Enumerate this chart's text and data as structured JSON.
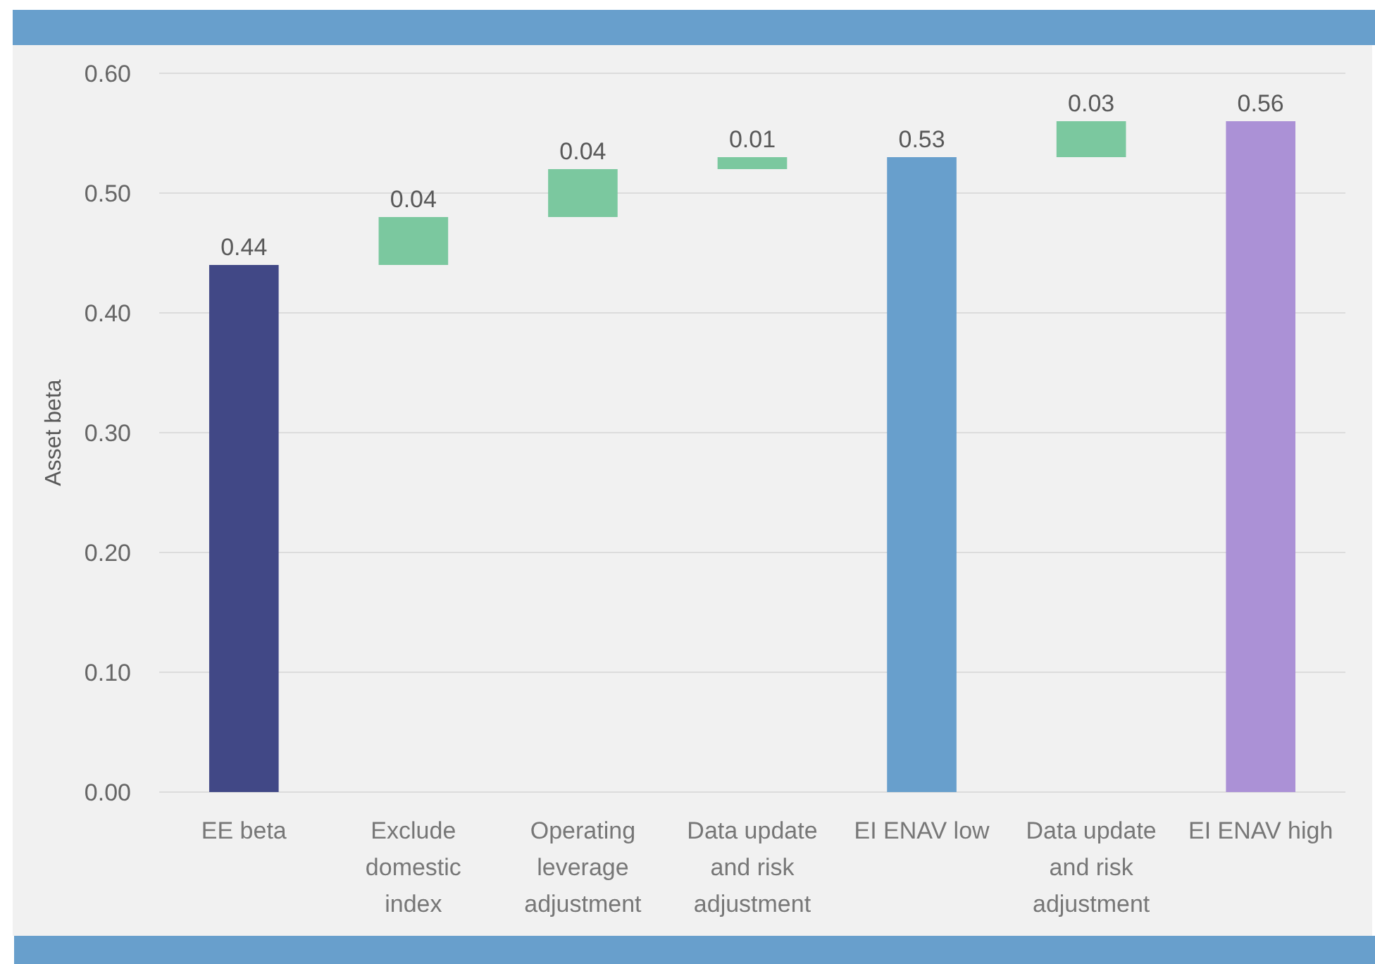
{
  "chart_data": {
    "type": "bar",
    "ylabel": "Asset beta",
    "categories": [
      "EE beta",
      "Exclude domestic index",
      "Operating leverage adjustment",
      "Data update and risk adjustment",
      "EI ENAV low",
      "Data update and risk adjustment",
      "EI ENAV high"
    ],
    "values": [
      0.44,
      0.04,
      0.04,
      0.01,
      0.53,
      0.03,
      0.56
    ],
    "base": [
      0,
      0.44,
      0.48,
      0.52,
      0,
      0.53,
      0
    ],
    "colors": [
      "#414886",
      "#7bc89f",
      "#7bc89f",
      "#7bc89f",
      "#689fcc",
      "#7bc89f",
      "#ab91d6"
    ],
    "ylim": [
      0,
      0.6
    ],
    "yticks": [
      {
        "value": 0,
        "label": "0.00"
      },
      {
        "value": 0.1,
        "label": "0.10"
      },
      {
        "value": 0.2,
        "label": "0.20"
      },
      {
        "value": 0.3,
        "label": "0.30"
      },
      {
        "value": 0.4,
        "label": "0.40"
      },
      {
        "value": 0.5,
        "label": "0.50"
      },
      {
        "value": 0.6,
        "label": "0.60"
      }
    ],
    "grid": "y",
    "data_labels": true
  }
}
